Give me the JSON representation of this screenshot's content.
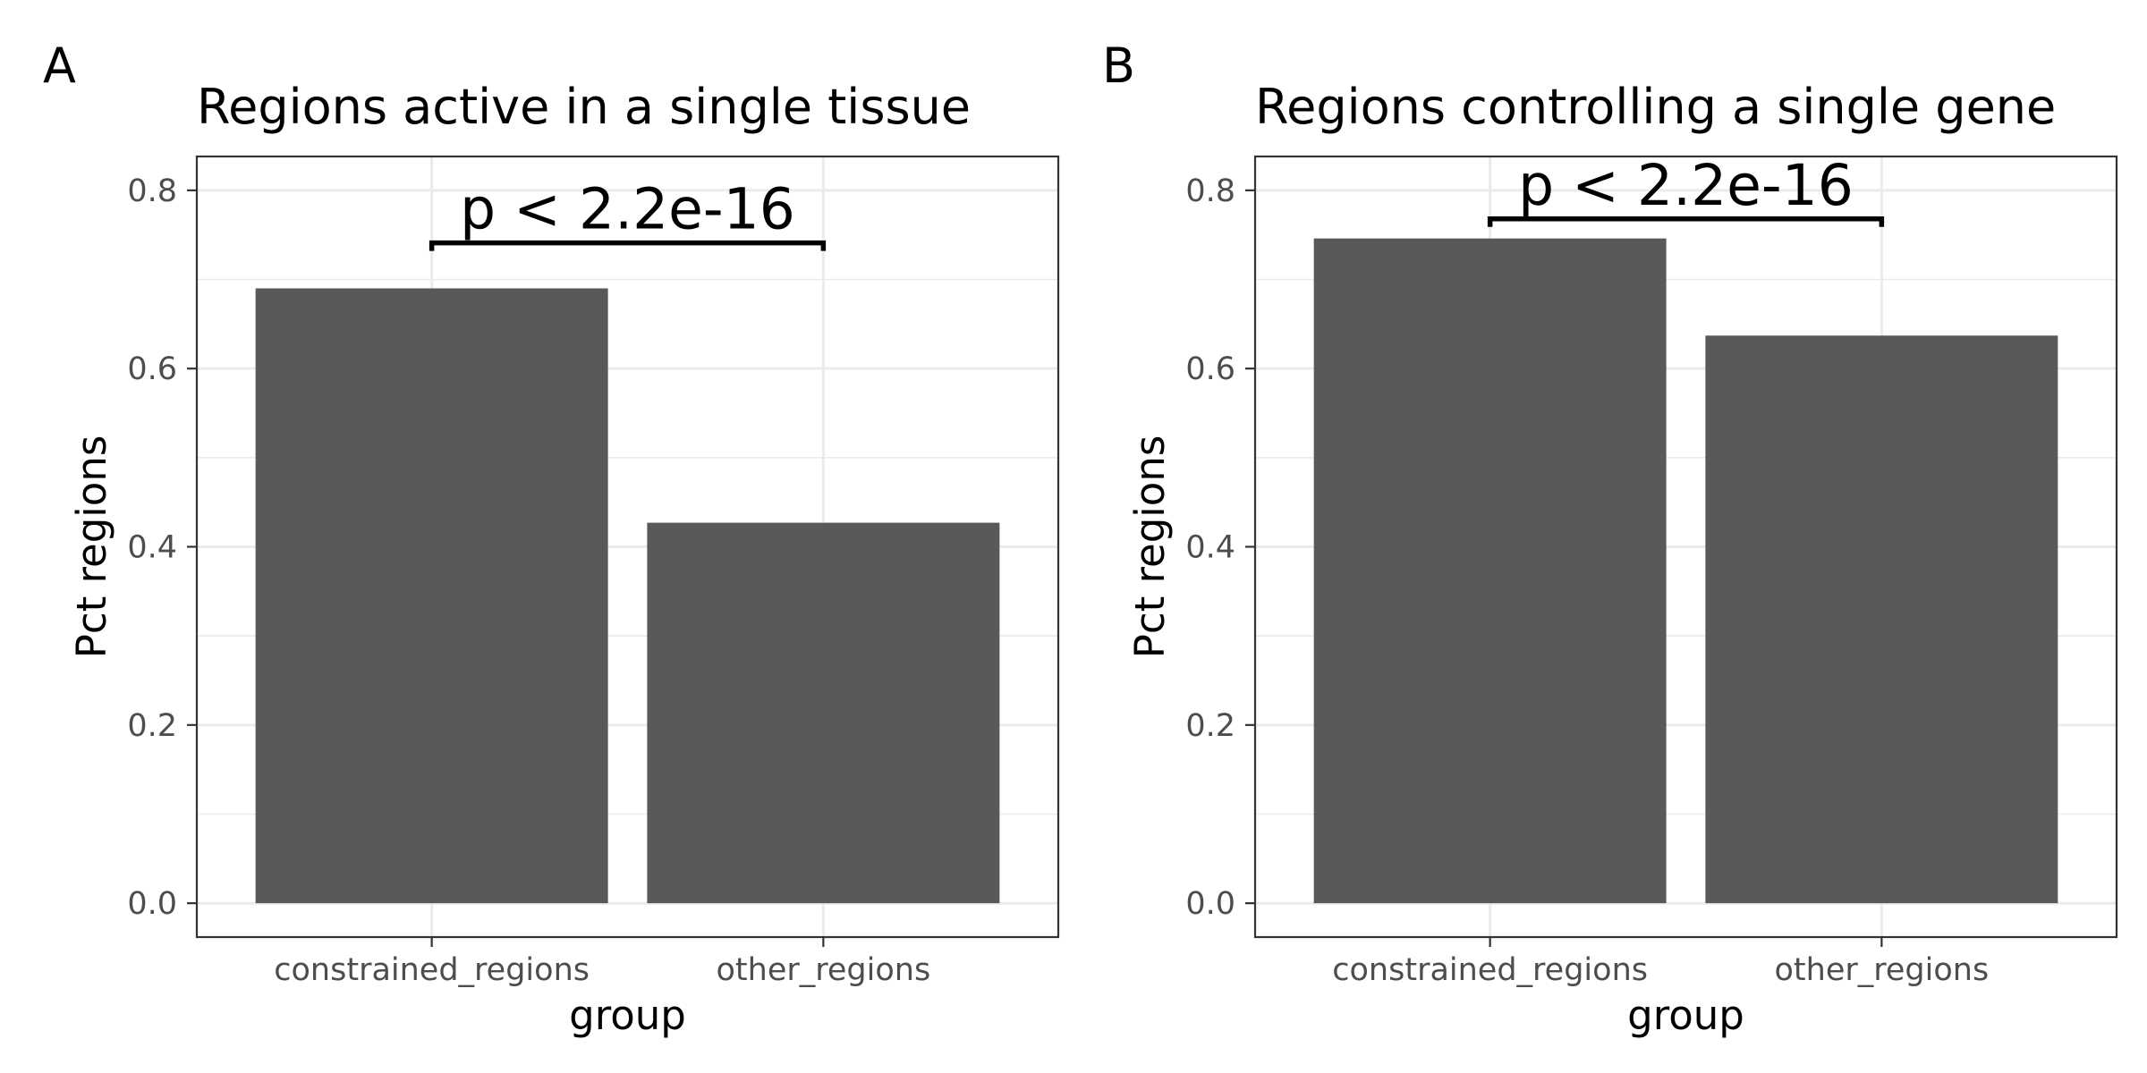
{
  "colors": {
    "bar_fill": "#595959",
    "panel_border": "#333333",
    "grid": "#ebebeb",
    "tick_label": "#4d4d4d",
    "text": "#000000"
  },
  "chart_data": [
    {
      "type": "bar",
      "panel_label": "A",
      "title": "Regions active in a single tissue",
      "xlabel": "group",
      "ylabel": "Pct regions",
      "categories": [
        "constrained_regions",
        "other_regions"
      ],
      "values": [
        0.69,
        0.427
      ],
      "ylim": [
        -0.038,
        0.838
      ],
      "yticks": [
        0.0,
        0.2,
        0.4,
        0.6,
        0.8
      ],
      "ytick_labels": [
        "0.0",
        "0.2",
        "0.4",
        "0.6",
        "0.8"
      ],
      "grid": true,
      "legend": "none",
      "annotation": {
        "text": "p < 2.2e-16",
        "from": "constrained_regions",
        "to": "other_regions",
        "y": 0.741
      }
    },
    {
      "type": "bar",
      "panel_label": "B",
      "title": "Regions controlling a single gene",
      "xlabel": "group",
      "ylabel": "Pct regions",
      "categories": [
        "constrained_regions",
        "other_regions"
      ],
      "values": [
        0.746,
        0.637
      ],
      "ylim": [
        -0.038,
        0.838
      ],
      "yticks": [
        0.0,
        0.2,
        0.4,
        0.6,
        0.8
      ],
      "ytick_labels": [
        "0.0",
        "0.2",
        "0.4",
        "0.6",
        "0.8"
      ],
      "grid": true,
      "legend": "none",
      "annotation": {
        "text": "p < 2.2e-16",
        "from": "constrained_regions",
        "to": "other_regions",
        "y": 0.768
      }
    }
  ]
}
